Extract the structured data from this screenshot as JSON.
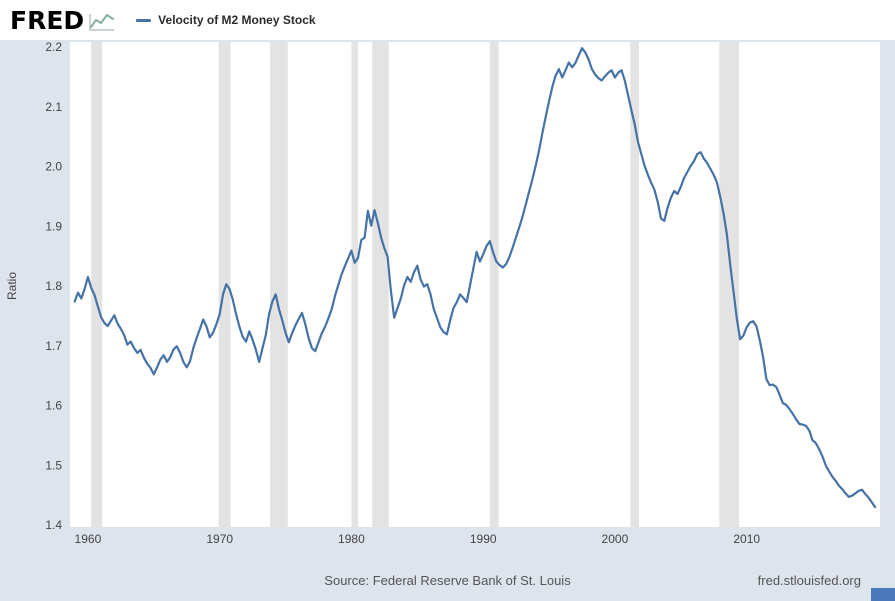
{
  "header": {
    "logo_text": "FRED",
    "legend": {
      "label": "Velocity of M2 Money Stock",
      "line_color": "#4572a7"
    }
  },
  "footer": {
    "source": "Source: Federal Reserve Bank of St. Louis",
    "site": "fred.stlouisfed.org"
  },
  "colors": {
    "page_bg": "#dde4ec",
    "header_bg": "#ffffff",
    "plot_bg": "#ffffff",
    "recession_band": "#e3e3e3",
    "line": "#4572a7",
    "tick_text": "#444444",
    "footer_text": "#555555",
    "corner_badge": "#4b78ba",
    "logo_sparkline": "#86af9e"
  },
  "chart_data": {
    "type": "line",
    "title": "Velocity of M2 Money Stock",
    "xlabel": "",
    "ylabel": "Ratio",
    "x_range": [
      1958.64,
      2020.12
    ],
    "y_range": [
      1.4,
      2.2
    ],
    "x_ticks": [
      1960,
      1970,
      1980,
      1990,
      2000,
      2010
    ],
    "y_ticks": [
      1.4,
      1.5,
      1.6,
      1.7,
      1.8,
      1.9,
      2.0,
      2.1,
      2.2
    ],
    "grid": false,
    "legend_position": "top-left",
    "recession_bands": [
      [
        1960.25,
        1961.08
      ],
      [
        1969.92,
        1970.83
      ],
      [
        1973.83,
        1975.17
      ],
      [
        1980.0,
        1980.5
      ],
      [
        1981.58,
        1982.83
      ],
      [
        1990.5,
        1991.17
      ],
      [
        2001.17,
        2001.83
      ],
      [
        2007.92,
        2009.42
      ]
    ],
    "series": [
      {
        "name": "Velocity of M2 Money Stock",
        "color": "#4572a7",
        "start_year": 1959,
        "frequency": "quarterly",
        "values": [
          1.774,
          1.789,
          1.779,
          1.795,
          1.815,
          1.797,
          1.785,
          1.766,
          1.748,
          1.738,
          1.733,
          1.742,
          1.751,
          1.737,
          1.728,
          1.718,
          1.702,
          1.707,
          1.696,
          1.688,
          1.693,
          1.68,
          1.67,
          1.663,
          1.652,
          1.664,
          1.677,
          1.684,
          1.673,
          1.681,
          1.694,
          1.699,
          1.688,
          1.673,
          1.664,
          1.674,
          1.696,
          1.713,
          1.728,
          1.744,
          1.732,
          1.714,
          1.722,
          1.736,
          1.753,
          1.786,
          1.803,
          1.795,
          1.777,
          1.753,
          1.732,
          1.715,
          1.707,
          1.724,
          1.71,
          1.693,
          1.673,
          1.696,
          1.718,
          1.753,
          1.774,
          1.786,
          1.761,
          1.743,
          1.722,
          1.706,
          1.721,
          1.734,
          1.745,
          1.755,
          1.736,
          1.713,
          1.696,
          1.691,
          1.706,
          1.721,
          1.732,
          1.746,
          1.761,
          1.783,
          1.801,
          1.819,
          1.833,
          1.846,
          1.859,
          1.839,
          1.847,
          1.877,
          1.881,
          1.926,
          1.901,
          1.927,
          1.906,
          1.881,
          1.863,
          1.849,
          1.792,
          1.747,
          1.763,
          1.779,
          1.801,
          1.815,
          1.807,
          1.823,
          1.834,
          1.811,
          1.799,
          1.803,
          1.786,
          1.761,
          1.746,
          1.731,
          1.723,
          1.719,
          1.743,
          1.763,
          1.773,
          1.786,
          1.78,
          1.773,
          1.801,
          1.829,
          1.857,
          1.841,
          1.853,
          1.867,
          1.875,
          1.857,
          1.841,
          1.835,
          1.831,
          1.837,
          1.849,
          1.865,
          1.882,
          1.899,
          1.917,
          1.938,
          1.959,
          1.98,
          2.003,
          2.028,
          2.057,
          2.083,
          2.109,
          2.133,
          2.152,
          2.163,
          2.149,
          2.161,
          2.174,
          2.166,
          2.173,
          2.186,
          2.198,
          2.191,
          2.179,
          2.163,
          2.154,
          2.148,
          2.144,
          2.151,
          2.157,
          2.161,
          2.149,
          2.157,
          2.161,
          2.144,
          2.119,
          2.094,
          2.071,
          2.041,
          2.021,
          2.001,
          1.986,
          1.973,
          1.961,
          1.941,
          1.913,
          1.909,
          1.931,
          1.948,
          1.959,
          1.954,
          1.966,
          1.981,
          1.991,
          2.001,
          2.009,
          2.021,
          2.024,
          2.013,
          2.006,
          1.996,
          1.986,
          1.973,
          1.949,
          1.921,
          1.886,
          1.836,
          1.791,
          1.746,
          1.711,
          1.717,
          1.731,
          1.739,
          1.741,
          1.732,
          1.709,
          1.681,
          1.644,
          1.634,
          1.635,
          1.631,
          1.618,
          1.604,
          1.601,
          1.594,
          1.586,
          1.577,
          1.569,
          1.568,
          1.566,
          1.558,
          1.542,
          1.537,
          1.527,
          1.515,
          1.5,
          1.49,
          1.481,
          1.474,
          1.466,
          1.46,
          1.453,
          1.447,
          1.449,
          1.453,
          1.457,
          1.459,
          1.452,
          1.446,
          1.438,
          1.43
        ]
      }
    ]
  }
}
